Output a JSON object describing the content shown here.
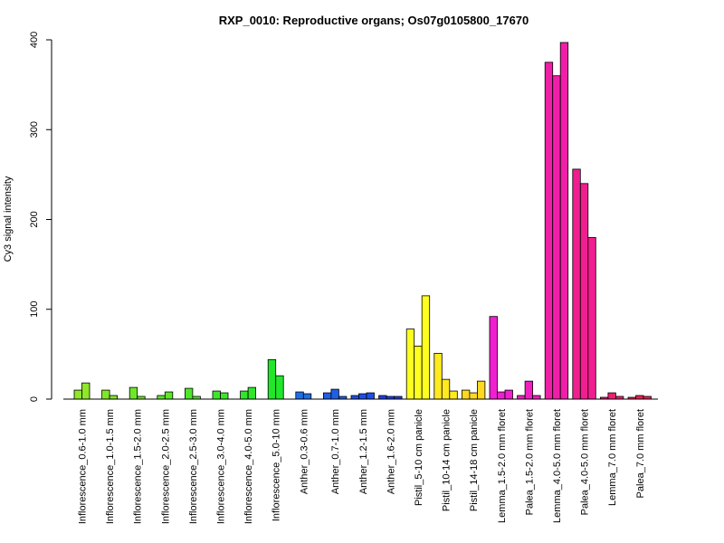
{
  "chart_data": {
    "type": "bar",
    "title": "RXP_0010: Reproductive organs; Os07g0105800_17670",
    "xlabel": "",
    "ylabel": "Cy3 signal intensity",
    "ylim": [
      0,
      400
    ],
    "yticks": [
      0,
      100,
      200,
      300,
      400
    ],
    "grid": false,
    "legend": "none",
    "groups": [
      {
        "label": "Inflorescence_0.6-1.0 mm",
        "color": "#8fe62a",
        "values": [
          10,
          18
        ]
      },
      {
        "label": "Inflorescence_1.0-1.5 mm",
        "color": "#80e62a",
        "values": [
          10,
          4
        ]
      },
      {
        "label": "Inflorescence_1.5-2.0 mm",
        "color": "#6ee62a",
        "values": [
          13,
          3
        ]
      },
      {
        "label": "Inflorescence_2.0-2.5 mm",
        "color": "#5ee62a",
        "values": [
          4,
          8
        ]
      },
      {
        "label": "Inflorescence_2.5-3.0 mm",
        "color": "#4ee62a",
        "values": [
          12,
          3
        ]
      },
      {
        "label": "Inflorescence_3.0-4.0 mm",
        "color": "#3ee62a",
        "values": [
          9,
          7
        ]
      },
      {
        "label": "Inflorescence_4.0-5.0 mm",
        "color": "#30e62a",
        "values": [
          9,
          13
        ]
      },
      {
        "label": "Inflorescence_5.0-10 mm",
        "color": "#22e62a",
        "values": [
          44,
          26
        ]
      },
      {
        "label": "Anther_0.3-0.6 mm",
        "color": "#1f6ee6",
        "values": [
          8,
          6
        ]
      },
      {
        "label": "Anther_0.7-1.0 mm",
        "color": "#1f5ee6",
        "values": [
          7,
          11,
          3
        ]
      },
      {
        "label": "Anther_1.2-1.5 mm",
        "color": "#1f4ee6",
        "values": [
          4,
          6,
          7
        ]
      },
      {
        "label": "Anther_1.6-2.0 mm",
        "color": "#1f3ee6",
        "values": [
          4,
          3,
          3
        ]
      },
      {
        "label": "Pistil_5-10 cm panicle",
        "color": "#ffff1f",
        "values": [
          78,
          59,
          115
        ]
      },
      {
        "label": "Pistil_10-14 cm panicle",
        "color": "#ffea1f",
        "values": [
          51,
          22,
          9
        ]
      },
      {
        "label": "Pistil_14-18 cm panicle",
        "color": "#ffd91f",
        "values": [
          10,
          7,
          20
        ]
      },
      {
        "label": "Lemma_1.5-2.0 mm floret",
        "color": "#f01fd0",
        "values": [
          92,
          8,
          10
        ]
      },
      {
        "label": "Palea_1.5-2.0 mm floret",
        "color": "#f01fc0",
        "values": [
          4,
          20,
          4
        ]
      },
      {
        "label": "Lemma_4.0-5.0 mm floret",
        "color": "#f01fa8",
        "values": [
          375,
          360,
          397
        ]
      },
      {
        "label": "Palea_4.0-5.0 mm floret",
        "color": "#f01f90",
        "values": [
          256,
          240,
          180
        ]
      },
      {
        "label": "Lemma_7.0 mm floret",
        "color": "#f01f70",
        "values": [
          2,
          7,
          3
        ]
      },
      {
        "label": "Palea_7.0 mm floret",
        "color": "#f01f58",
        "values": [
          2,
          4,
          3
        ]
      }
    ]
  }
}
